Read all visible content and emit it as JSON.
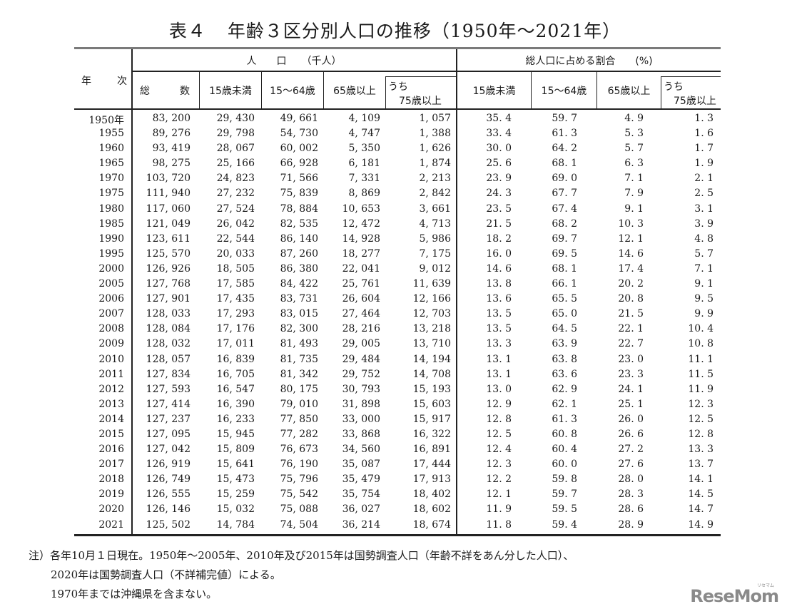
{
  "title": {
    "label": "表４",
    "text": "年齢３区分別人口の推移（1950年～2021年）"
  },
  "header": {
    "year_col": [
      "年",
      "次"
    ],
    "population_group": "人　　口　　（千人）",
    "ratio_group": "総人口に占める割合　　(%)",
    "population_cols": [
      "総　　　数",
      "15歳未満",
      "15～64歳",
      "65歳以上",
      "うち",
      "75歳以上"
    ],
    "ratio_cols": [
      "15歳未満",
      "15～64歳",
      "65歳以上",
      "うち",
      "75歳以上"
    ]
  },
  "rows": [
    {
      "year": "1950年",
      "total": "83, 200",
      "u15": "29, 430",
      "a15_64": "49, 661",
      "o65": "4, 109",
      "o75": "1, 057",
      "p_u15": "35. 4",
      "p_15_64": "59. 7",
      "p_o65": "4. 9",
      "p_o75": "1. 3"
    },
    {
      "year": "1955",
      "total": "89, 276",
      "u15": "29, 798",
      "a15_64": "54, 730",
      "o65": "4, 747",
      "o75": "1, 388",
      "p_u15": "33. 4",
      "p_15_64": "61. 3",
      "p_o65": "5. 3",
      "p_o75": "1. 6"
    },
    {
      "year": "1960",
      "total": "93, 419",
      "u15": "28, 067",
      "a15_64": "60, 002",
      "o65": "5, 350",
      "o75": "1, 626",
      "p_u15": "30. 0",
      "p_15_64": "64. 2",
      "p_o65": "5. 7",
      "p_o75": "1. 7"
    },
    {
      "year": "1965",
      "total": "98, 275",
      "u15": "25, 166",
      "a15_64": "66, 928",
      "o65": "6, 181",
      "o75": "1, 874",
      "p_u15": "25. 6",
      "p_15_64": "68. 1",
      "p_o65": "6. 3",
      "p_o75": "1. 9"
    },
    {
      "year": "1970",
      "total": "103, 720",
      "u15": "24, 823",
      "a15_64": "71, 566",
      "o65": "7, 331",
      "o75": "2, 213",
      "p_u15": "23. 9",
      "p_15_64": "69. 0",
      "p_o65": "7. 1",
      "p_o75": "2. 1"
    },
    {
      "year": "1975",
      "total": "111, 940",
      "u15": "27, 232",
      "a15_64": "75, 839",
      "o65": "8, 869",
      "o75": "2, 842",
      "p_u15": "24. 3",
      "p_15_64": "67. 7",
      "p_o65": "7. 9",
      "p_o75": "2. 5"
    },
    {
      "year": "1980",
      "total": "117, 060",
      "u15": "27, 524",
      "a15_64": "78, 884",
      "o65": "10, 653",
      "o75": "3, 661",
      "p_u15": "23. 5",
      "p_15_64": "67. 4",
      "p_o65": "9. 1",
      "p_o75": "3. 1"
    },
    {
      "year": "1985",
      "total": "121, 049",
      "u15": "26, 042",
      "a15_64": "82, 535",
      "o65": "12, 472",
      "o75": "4, 713",
      "p_u15": "21. 5",
      "p_15_64": "68. 2",
      "p_o65": "10. 3",
      "p_o75": "3. 9"
    },
    {
      "year": "1990",
      "total": "123, 611",
      "u15": "22, 544",
      "a15_64": "86, 140",
      "o65": "14, 928",
      "o75": "5, 986",
      "p_u15": "18. 2",
      "p_15_64": "69. 7",
      "p_o65": "12. 1",
      "p_o75": "4. 8"
    },
    {
      "year": "1995",
      "total": "125, 570",
      "u15": "20, 033",
      "a15_64": "87, 260",
      "o65": "18, 277",
      "o75": "7, 175",
      "p_u15": "16. 0",
      "p_15_64": "69. 5",
      "p_o65": "14. 6",
      "p_o75": "5. 7"
    },
    {
      "year": "2000",
      "total": "126, 926",
      "u15": "18, 505",
      "a15_64": "86, 380",
      "o65": "22, 041",
      "o75": "9, 012",
      "p_u15": "14. 6",
      "p_15_64": "68. 1",
      "p_o65": "17. 4",
      "p_o75": "7. 1"
    },
    {
      "year": "2005",
      "total": "127, 768",
      "u15": "17, 585",
      "a15_64": "84, 422",
      "o65": "25, 761",
      "o75": "11, 639",
      "p_u15": "13. 8",
      "p_15_64": "66. 1",
      "p_o65": "20. 2",
      "p_o75": "9. 1"
    },
    {
      "year": "2006",
      "total": "127, 901",
      "u15": "17, 435",
      "a15_64": "83, 731",
      "o65": "26, 604",
      "o75": "12, 166",
      "p_u15": "13. 6",
      "p_15_64": "65. 5",
      "p_o65": "20. 8",
      "p_o75": "9. 5"
    },
    {
      "year": "2007",
      "total": "128, 033",
      "u15": "17, 293",
      "a15_64": "83, 015",
      "o65": "27, 464",
      "o75": "12, 703",
      "p_u15": "13. 5",
      "p_15_64": "65. 0",
      "p_o65": "21. 5",
      "p_o75": "9. 9"
    },
    {
      "year": "2008",
      "total": "128, 084",
      "u15": "17, 176",
      "a15_64": "82, 300",
      "o65": "28, 216",
      "o75": "13, 218",
      "p_u15": "13. 5",
      "p_15_64": "64. 5",
      "p_o65": "22. 1",
      "p_o75": "10. 4"
    },
    {
      "year": "2009",
      "total": "128, 032",
      "u15": "17, 011",
      "a15_64": "81, 493",
      "o65": "29, 005",
      "o75": "13, 710",
      "p_u15": "13. 3",
      "p_15_64": "63. 9",
      "p_o65": "22. 7",
      "p_o75": "10. 8"
    },
    {
      "year": "2010",
      "total": "128, 057",
      "u15": "16, 839",
      "a15_64": "81, 735",
      "o65": "29, 484",
      "o75": "14, 194",
      "p_u15": "13. 1",
      "p_15_64": "63. 8",
      "p_o65": "23. 0",
      "p_o75": "11. 1"
    },
    {
      "year": "2011",
      "total": "127, 834",
      "u15": "16, 705",
      "a15_64": "81, 342",
      "o65": "29, 752",
      "o75": "14, 708",
      "p_u15": "13. 1",
      "p_15_64": "63. 6",
      "p_o65": "23. 3",
      "p_o75": "11. 5"
    },
    {
      "year": "2012",
      "total": "127, 593",
      "u15": "16, 547",
      "a15_64": "80, 175",
      "o65": "30, 793",
      "o75": "15, 193",
      "p_u15": "13. 0",
      "p_15_64": "62. 9",
      "p_o65": "24. 1",
      "p_o75": "11. 9"
    },
    {
      "year": "2013",
      "total": "127, 414",
      "u15": "16, 390",
      "a15_64": "79, 010",
      "o65": "31, 898",
      "o75": "15, 603",
      "p_u15": "12. 9",
      "p_15_64": "62. 1",
      "p_o65": "25. 1",
      "p_o75": "12. 3"
    },
    {
      "year": "2014",
      "total": "127, 237",
      "u15": "16, 233",
      "a15_64": "77, 850",
      "o65": "33, 000",
      "o75": "15, 917",
      "p_u15": "12. 8",
      "p_15_64": "61. 3",
      "p_o65": "26. 0",
      "p_o75": "12. 5"
    },
    {
      "year": "2015",
      "total": "127, 095",
      "u15": "15, 945",
      "a15_64": "77, 282",
      "o65": "33, 868",
      "o75": "16, 322",
      "p_u15": "12. 5",
      "p_15_64": "60. 8",
      "p_o65": "26. 6",
      "p_o75": "12. 8"
    },
    {
      "year": "2016",
      "total": "127, 042",
      "u15": "15, 809",
      "a15_64": "76, 673",
      "o65": "34, 560",
      "o75": "16, 891",
      "p_u15": "12. 4",
      "p_15_64": "60. 4",
      "p_o65": "27. 2",
      "p_o75": "13. 3"
    },
    {
      "year": "2017",
      "total": "126, 919",
      "u15": "15, 641",
      "a15_64": "76, 190",
      "o65": "35, 087",
      "o75": "17, 444",
      "p_u15": "12. 3",
      "p_15_64": "60. 0",
      "p_o65": "27. 6",
      "p_o75": "13. 7"
    },
    {
      "year": "2018",
      "total": "126, 749",
      "u15": "15, 473",
      "a15_64": "75, 796",
      "o65": "35, 479",
      "o75": "17, 913",
      "p_u15": "12. 2",
      "p_15_64": "59. 8",
      "p_o65": "28. 0",
      "p_o75": "14. 1"
    },
    {
      "year": "2019",
      "total": "126, 555",
      "u15": "15, 259",
      "a15_64": "75, 542",
      "o65": "35, 754",
      "o75": "18, 402",
      "p_u15": "12. 1",
      "p_15_64": "59. 7",
      "p_o65": "28. 3",
      "p_o75": "14. 5"
    },
    {
      "year": "2020",
      "total": "126, 146",
      "u15": "15, 032",
      "a15_64": "75, 088",
      "o65": "36, 027",
      "o75": "18, 602",
      "p_u15": "11. 9",
      "p_15_64": "59. 5",
      "p_o65": "28. 6",
      "p_o75": "14. 7"
    },
    {
      "year": "2021",
      "total": "125, 502",
      "u15": "14, 784",
      "a15_64": "74, 504",
      "o65": "36, 214",
      "o75": "18, 674",
      "p_u15": "11. 8",
      "p_15_64": "59. 4",
      "p_o65": "28. 9",
      "p_o75": "14. 9"
    }
  ],
  "notes": [
    "注）各年10月１日現在。1950年～2005年、2010年及び2015年は国勢調査人口（年齢不詳をあん分した人口）、",
    "2020年は国勢調査人口（不詳補完値）による。",
    "1970年までは沖縄県を含まない。"
  ],
  "watermark": {
    "text": "ReseMom",
    "kana": "リセマム"
  }
}
